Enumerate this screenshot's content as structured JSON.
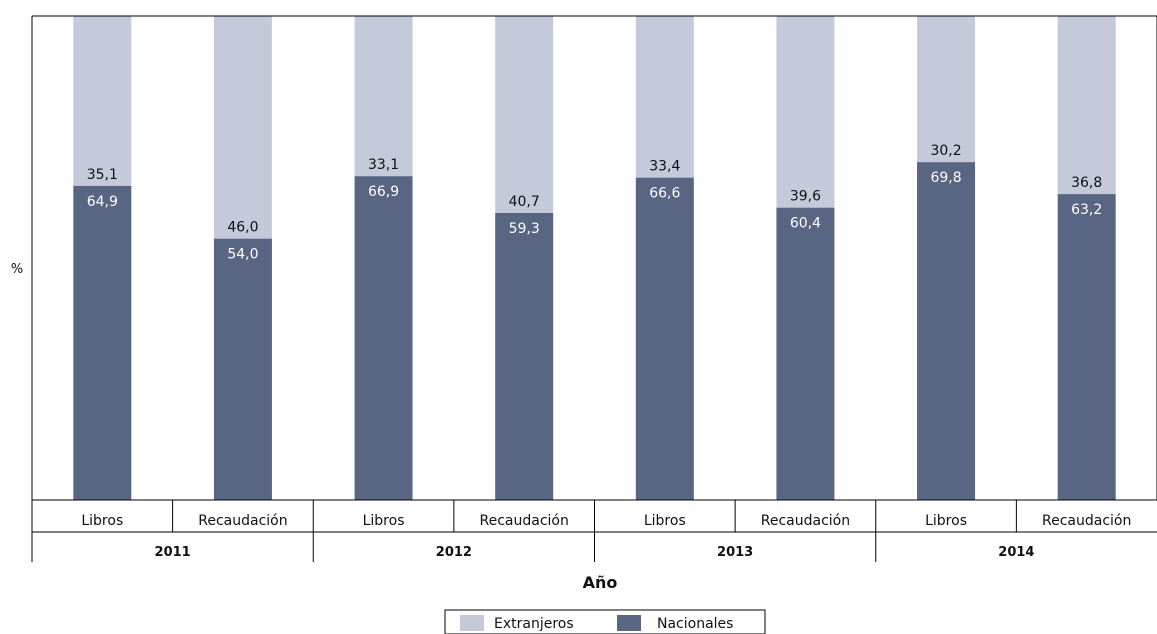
{
  "chart_data": {
    "type": "bar",
    "stacked": true,
    "normalized_100": true,
    "xlabel": "Año",
    "ylabel": "%",
    "ylim": [
      0,
      100
    ],
    "grid": false,
    "legend_position": "bottom",
    "groups": [
      {
        "year": "2011",
        "categories": [
          "Libros",
          "Recaudación"
        ]
      },
      {
        "year": "2012",
        "categories": [
          "Libros",
          "Recaudación"
        ]
      },
      {
        "year": "2013",
        "categories": [
          "Libros",
          "Recaudación"
        ]
      },
      {
        "year": "2014",
        "categories": [
          "Libros",
          "Recaudación"
        ]
      }
    ],
    "series": [
      {
        "name": "Nacionales",
        "color": "#586683",
        "values": [
          64.9,
          54.0,
          66.9,
          59.3,
          66.6,
          60.4,
          69.8,
          63.2
        ],
        "labels": [
          "64,9",
          "54,0",
          "66,9",
          "59,3",
          "66,6",
          "60,4",
          "69,8",
          "63,2"
        ]
      },
      {
        "name": "Extranjeros",
        "color": "#c5cadb",
        "values": [
          35.1,
          46.0,
          33.1,
          40.7,
          33.4,
          39.6,
          30.2,
          36.8
        ],
        "labels": [
          "35,1",
          "46,0",
          "33,1",
          "40,7",
          "33,4",
          "39,6",
          "30,2",
          "36,8"
        ]
      }
    ],
    "legend": [
      "Extranjeros",
      "Nacionales"
    ]
  }
}
